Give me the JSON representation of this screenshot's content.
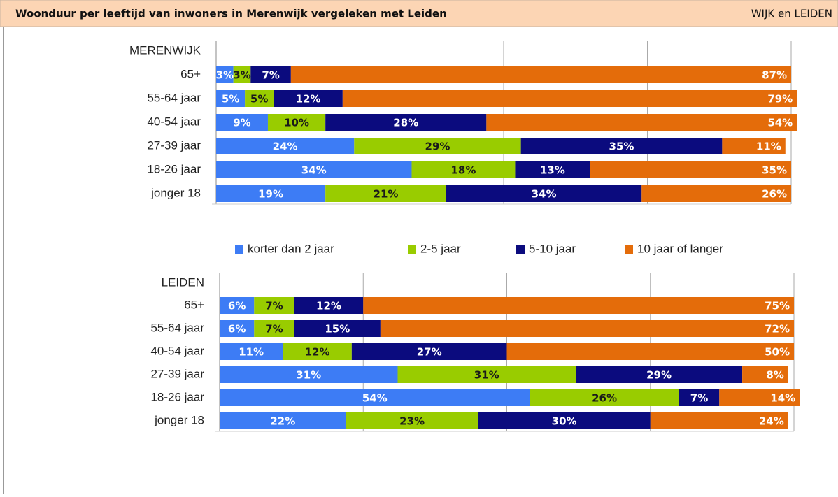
{
  "header": {
    "title": "Woonduur per leeftijd van inwoners in Merenwijk vergeleken met Leiden",
    "right": "WIJK en LEIDEN"
  },
  "chart_data": [
    {
      "type": "stacked-bar-horizontal",
      "title": "MERENWIJK",
      "categories": [
        "65+",
        "55-64 jaar",
        "40-54 jaar",
        "27-39 jaar",
        "18-26 jaar",
        "jonger 18"
      ],
      "xlim": [
        0,
        100
      ],
      "xticks": [
        0,
        25,
        50,
        75,
        100
      ],
      "grid": true,
      "legend": "bottom",
      "series": [
        {
          "name": "korter dan 2 jaar",
          "color": "#3d7cf5",
          "values": [
            3,
            5,
            9,
            24,
            34,
            19
          ],
          "value_labels": [
            "3%",
            "5%",
            "9%",
            "24%",
            "34%",
            "19%"
          ]
        },
        {
          "name": "2-5 jaar",
          "color": "#99cc00",
          "values": [
            3,
            5,
            10,
            29,
            18,
            21
          ],
          "value_labels": [
            "3%",
            "5%",
            "10%",
            "29%",
            "18%",
            "21%"
          ]
        },
        {
          "name": "5-10 jaar",
          "color": "#0b0b7e",
          "values": [
            7,
            12,
            28,
            35,
            13,
            34
          ],
          "value_labels": [
            "7%",
            "12%",
            "28%",
            "35%",
            "13%",
            "34%"
          ]
        },
        {
          "name": "10 jaar of langer",
          "color": "#e46c0a",
          "values": [
            87,
            79,
            54,
            11,
            35,
            26
          ],
          "value_labels": [
            "87%",
            "79%",
            "54%",
            "11%",
            "35%",
            "26%"
          ]
        }
      ]
    },
    {
      "type": "stacked-bar-horizontal",
      "title": "LEIDEN",
      "categories": [
        "65+",
        "55-64 jaar",
        "40-54 jaar",
        "27-39 jaar",
        "18-26 jaar",
        "jonger 18"
      ],
      "xlim": [
        0,
        100
      ],
      "xticks": [
        0,
        25,
        50,
        75,
        100
      ],
      "grid": true,
      "series": [
        {
          "values": [
            6,
            6,
            11,
            31,
            54,
            22
          ],
          "value_labels": [
            "6%",
            "6%",
            "11%",
            "31%",
            "54%",
            "22%"
          ]
        },
        {
          "values": [
            7,
            7,
            12,
            31,
            26,
            23
          ],
          "value_labels": [
            "7%",
            "7%",
            "12%",
            "31%",
            "26%",
            "23%"
          ]
        },
        {
          "values": [
            12,
            15,
            27,
            29,
            7,
            30
          ],
          "value_labels": [
            "12%",
            "15%",
            "27%",
            "29%",
            "7%",
            "30%"
          ]
        },
        {
          "values": [
            75,
            72,
            50,
            8,
            14,
            24
          ],
          "value_labels": [
            "75%",
            "72%",
            "50%",
            "8%",
            "14%",
            "24%"
          ]
        }
      ]
    }
  ]
}
